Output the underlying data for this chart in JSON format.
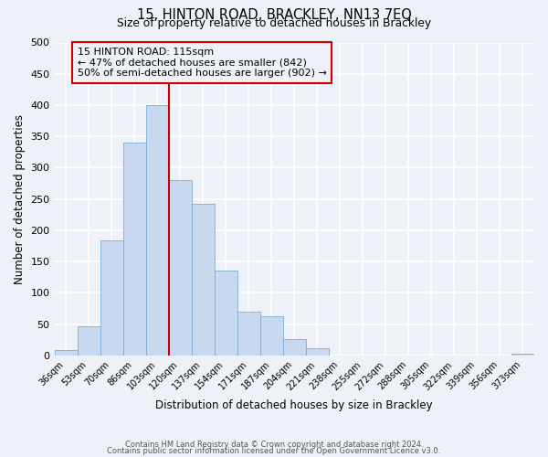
{
  "title_line1": "15, HINTON ROAD, BRACKLEY, NN13 7EQ",
  "title_line2": "Size of property relative to detached houses in Brackley",
  "bar_labels": [
    "36sqm",
    "53sqm",
    "70sqm",
    "86sqm",
    "103sqm",
    "120sqm",
    "137sqm",
    "154sqm",
    "171sqm",
    "187sqm",
    "204sqm",
    "221sqm",
    "238sqm",
    "255sqm",
    "272sqm",
    "288sqm",
    "305sqm",
    "322sqm",
    "339sqm",
    "356sqm",
    "373sqm"
  ],
  "bar_values": [
    8,
    46,
    184,
    340,
    400,
    280,
    242,
    135,
    70,
    63,
    26,
    12,
    0,
    0,
    0,
    0,
    0,
    0,
    0,
    0,
    2
  ],
  "bar_color": "#c8d8ee",
  "bar_edge_color": "#7aafd4",
  "ylim": [
    0,
    500
  ],
  "yticks": [
    0,
    50,
    100,
    150,
    200,
    250,
    300,
    350,
    400,
    450,
    500
  ],
  "ylabel": "Number of detached properties",
  "xlabel": "Distribution of detached houses by size in Brackley",
  "vline_color": "#cc0000",
  "annotation_title": "15 HINTON ROAD: 115sqm",
  "annotation_line1": "← 47% of detached houses are smaller (842)",
  "annotation_line2": "50% of semi-detached houses are larger (902) →",
  "annotation_box_color": "#cc0000",
  "footer_line1": "Contains HM Land Registry data © Crown copyright and database right 2024.",
  "footer_line2": "Contains public sector information licensed under the Open Government Licence v3.0.",
  "background_color": "#eef2f8",
  "grid_color": "#ffffff",
  "fig_width": 6.0,
  "fig_height": 5.0,
  "dpi": 100
}
